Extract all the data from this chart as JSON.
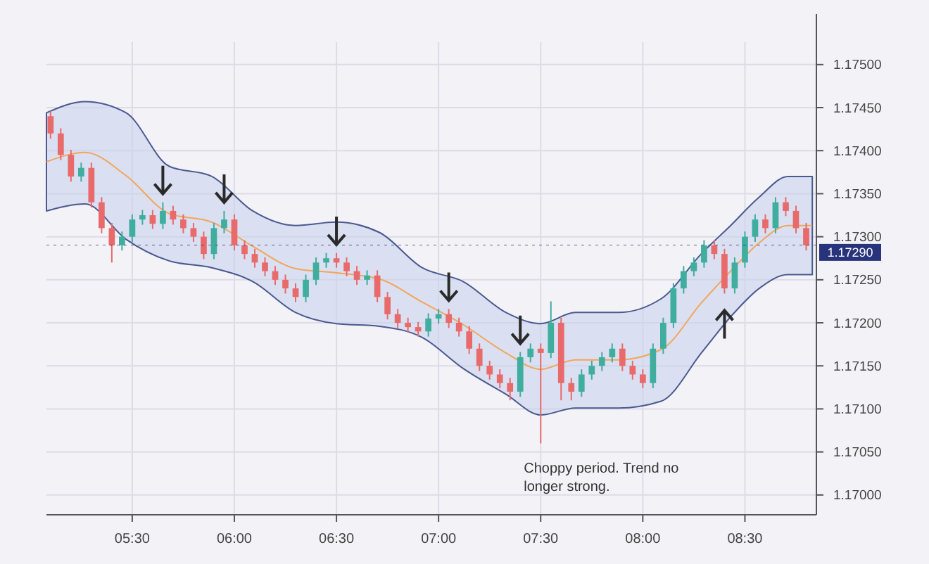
{
  "chart_data": {
    "type": "candlestick",
    "x": [
      5.1,
      5.15,
      5.2,
      5.25,
      5.3,
      5.35,
      5.4,
      5.45,
      5.5,
      5.55,
      5.6,
      5.65,
      5.7,
      5.75,
      5.8,
      5.85,
      5.9,
      5.95,
      6.0,
      6.05,
      6.1,
      6.15,
      6.2,
      6.25,
      6.3,
      6.35,
      6.4,
      6.45,
      6.5,
      6.55,
      6.6,
      6.65,
      6.7,
      6.75,
      6.8,
      6.85,
      6.9,
      6.95,
      7.0,
      7.05,
      7.1,
      7.15,
      7.2,
      7.25,
      7.3,
      7.35,
      7.4,
      7.45,
      7.5,
      7.55,
      7.6,
      7.65,
      7.7,
      7.75,
      7.8,
      7.85,
      7.9,
      7.95,
      8.0,
      8.05,
      8.1,
      8.15,
      8.2,
      8.25,
      8.3,
      8.35,
      8.4,
      8.45,
      8.5,
      8.55,
      8.6,
      8.65,
      8.7,
      8.75,
      8.8
    ],
    "ohlc": [
      [
        1.1744,
        1.17446,
        1.17414,
        1.1742
      ],
      [
        1.1742,
        1.17426,
        1.17389,
        1.17395
      ],
      [
        1.17395,
        1.17401,
        1.17364,
        1.1737
      ],
      [
        1.1737,
        1.17386,
        1.17364,
        1.1738
      ],
      [
        1.1738,
        1.17386,
        1.17334,
        1.1734
      ],
      [
        1.1734,
        1.17346,
        1.17304,
        1.1731
      ],
      [
        1.1731,
        1.17316,
        1.1727,
        1.1729
      ],
      [
        1.1729,
        1.17306,
        1.17284,
        1.173
      ],
      [
        1.173,
        1.17326,
        1.17294,
        1.1732
      ],
      [
        1.1732,
        1.17331,
        1.17314,
        1.17325
      ],
      [
        1.17325,
        1.17331,
        1.17309,
        1.17315
      ],
      [
        1.17315,
        1.1734,
        1.17309,
        1.1733
      ],
      [
        1.1733,
        1.17336,
        1.17314,
        1.1732
      ],
      [
        1.1732,
        1.17326,
        1.17304,
        1.1731
      ],
      [
        1.1731,
        1.17316,
        1.17294,
        1.173
      ],
      [
        1.173,
        1.17306,
        1.17274,
        1.1728
      ],
      [
        1.1728,
        1.17316,
        1.17274,
        1.1731
      ],
      [
        1.1731,
        1.1733,
        1.17304,
        1.1732
      ],
      [
        1.1732,
        1.17326,
        1.17284,
        1.1729
      ],
      [
        1.1729,
        1.17296,
        1.17274,
        1.1728
      ],
      [
        1.1728,
        1.17286,
        1.17264,
        1.1727
      ],
      [
        1.1727,
        1.17276,
        1.17254,
        1.1726
      ],
      [
        1.1726,
        1.17266,
        1.17244,
        1.1725
      ],
      [
        1.1725,
        1.17256,
        1.17234,
        1.1724
      ],
      [
        1.1724,
        1.17246,
        1.17224,
        1.1723
      ],
      [
        1.1723,
        1.17256,
        1.17224,
        1.1725
      ],
      [
        1.1725,
        1.17276,
        1.17244,
        1.1727
      ],
      [
        1.1727,
        1.17281,
        1.17264,
        1.17275
      ],
      [
        1.17275,
        1.17281,
        1.17264,
        1.1727
      ],
      [
        1.1727,
        1.17276,
        1.17254,
        1.1726
      ],
      [
        1.1726,
        1.17266,
        1.17244,
        1.1725
      ],
      [
        1.1725,
        1.17261,
        1.17244,
        1.17255
      ],
      [
        1.17255,
        1.17261,
        1.17224,
        1.1723
      ],
      [
        1.1723,
        1.17236,
        1.17204,
        1.1721
      ],
      [
        1.1721,
        1.17216,
        1.17194,
        1.172
      ],
      [
        1.172,
        1.17206,
        1.17189,
        1.17195
      ],
      [
        1.17195,
        1.17201,
        1.17184,
        1.1719
      ],
      [
        1.1719,
        1.17211,
        1.17184,
        1.17205
      ],
      [
        1.17205,
        1.17216,
        1.17199,
        1.1721
      ],
      [
        1.1721,
        1.17216,
        1.17194,
        1.172
      ],
      [
        1.172,
        1.17206,
        1.17184,
        1.1719
      ],
      [
        1.1719,
        1.17196,
        1.17164,
        1.1717
      ],
      [
        1.1717,
        1.17176,
        1.17144,
        1.1715
      ],
      [
        1.1715,
        1.17156,
        1.17134,
        1.1714
      ],
      [
        1.1714,
        1.17146,
        1.17124,
        1.1713
      ],
      [
        1.1713,
        1.17136,
        1.1711,
        1.1712
      ],
      [
        1.1712,
        1.17166,
        1.17114,
        1.1716
      ],
      [
        1.1716,
        1.17176,
        1.17154,
        1.1717
      ],
      [
        1.1717,
        1.17176,
        1.1706,
        1.17165
      ],
      [
        1.17165,
        1.17225,
        1.17159,
        1.172
      ],
      [
        1.172,
        1.17206,
        1.1711,
        1.1713
      ],
      [
        1.1713,
        1.17136,
        1.1711,
        1.1712
      ],
      [
        1.1712,
        1.17146,
        1.17114,
        1.1714
      ],
      [
        1.1714,
        1.17156,
        1.17134,
        1.1715
      ],
      [
        1.1715,
        1.17166,
        1.17144,
        1.1716
      ],
      [
        1.1716,
        1.17176,
        1.17154,
        1.1717
      ],
      [
        1.1717,
        1.17176,
        1.17144,
        1.1715
      ],
      [
        1.1715,
        1.17156,
        1.17134,
        1.1714
      ],
      [
        1.1714,
        1.17146,
        1.17124,
        1.1713
      ],
      [
        1.1713,
        1.17176,
        1.17124,
        1.1717
      ],
      [
        1.1717,
        1.17206,
        1.17164,
        1.172
      ],
      [
        1.172,
        1.17246,
        1.17194,
        1.1724
      ],
      [
        1.1724,
        1.17266,
        1.17234,
        1.1726
      ],
      [
        1.1726,
        1.17276,
        1.17254,
        1.1727
      ],
      [
        1.1727,
        1.17296,
        1.17264,
        1.1729
      ],
      [
        1.1729,
        1.17296,
        1.17274,
        1.1728
      ],
      [
        1.1728,
        1.17286,
        1.17234,
        1.1724
      ],
      [
        1.1724,
        1.17276,
        1.17234,
        1.1727
      ],
      [
        1.1727,
        1.17306,
        1.17264,
        1.173
      ],
      [
        1.173,
        1.17326,
        1.17294,
        1.1732
      ],
      [
        1.1732,
        1.17326,
        1.17304,
        1.1731
      ],
      [
        1.1731,
        1.17346,
        1.17304,
        1.1734
      ],
      [
        1.1734,
        1.17346,
        1.17324,
        1.1733
      ],
      [
        1.1733,
        1.17336,
        1.17304,
        1.1731
      ],
      [
        1.1731,
        1.17316,
        1.17284,
        1.1729
      ]
    ],
    "series": [
      {
        "type": "line",
        "color": "#f2a65a",
        "x": [
          5.08,
          5.27,
          5.47,
          5.68,
          5.89,
          6.09,
          6.3,
          6.5,
          6.71,
          6.92,
          7.12,
          7.33,
          7.5,
          7.67,
          7.88,
          8.09,
          8.29,
          8.43,
          8.57,
          8.71,
          8.83
        ],
        "values": [
          1.17387,
          1.17398,
          1.17371,
          1.17327,
          1.17317,
          1.17289,
          1.17263,
          1.17258,
          1.17251,
          1.17224,
          1.17198,
          1.17165,
          1.17146,
          1.17157,
          1.17157,
          1.17169,
          1.17224,
          1.1726,
          1.17293,
          1.17313,
          1.17313
        ],
        "lower": [
          1.1733,
          1.17338,
          1.17297,
          1.17272,
          1.17264,
          1.17248,
          1.17212,
          1.17199,
          1.17196,
          1.17183,
          1.17147,
          1.17117,
          1.17093,
          1.17101,
          1.17101,
          1.17109,
          1.17166,
          1.17207,
          1.1724,
          1.17256,
          1.17256
        ],
        "upper": [
          1.17444,
          1.17457,
          1.17444,
          1.17382,
          1.1737,
          1.1733,
          1.17313,
          1.17317,
          1.17305,
          1.17264,
          1.17248,
          1.17212,
          1.17199,
          1.17212,
          1.17212,
          1.17228,
          1.17281,
          1.17313,
          1.17346,
          1.1737,
          1.1737
        ]
      }
    ],
    "xlim": [
      5.08,
      8.85
    ],
    "ylim": [
      1.16977,
      1.17526
    ],
    "xticks": [
      {
        "value": 5.5,
        "label": "05:30"
      },
      {
        "value": 6,
        "label": "06:00"
      },
      {
        "value": 6.5,
        "label": "06:30"
      },
      {
        "value": 7,
        "label": "07:00"
      },
      {
        "value": 7.5,
        "label": "07:30"
      },
      {
        "value": 8,
        "label": "08:00"
      },
      {
        "value": 8.5,
        "label": "08:30"
      }
    ],
    "yticks": [
      {
        "value": 1.17,
        "label": "1.17000"
      },
      {
        "value": 1.1705,
        "label": "1.17050"
      },
      {
        "value": 1.171,
        "label": "1.17100"
      },
      {
        "value": 1.1715,
        "label": "1.17150"
      },
      {
        "value": 1.172,
        "label": "1.17200"
      },
      {
        "value": 1.1725,
        "label": "1.17250"
      },
      {
        "value": 1.173,
        "label": "1.17300"
      },
      {
        "value": 1.1735,
        "label": "1.17350"
      },
      {
        "value": 1.174,
        "label": "1.17400"
      },
      {
        "value": 1.1745,
        "label": "1.17450"
      },
      {
        "value": 1.175,
        "label": "1.17500"
      }
    ],
    "ref_lines": [
      {
        "axis": "y",
        "value": 1.1729,
        "label": "1.17290",
        "color": "#27337a"
      }
    ],
    "annotations": [
      "Choppy period. Trend no longer strong."
    ],
    "grid": true
  }
}
